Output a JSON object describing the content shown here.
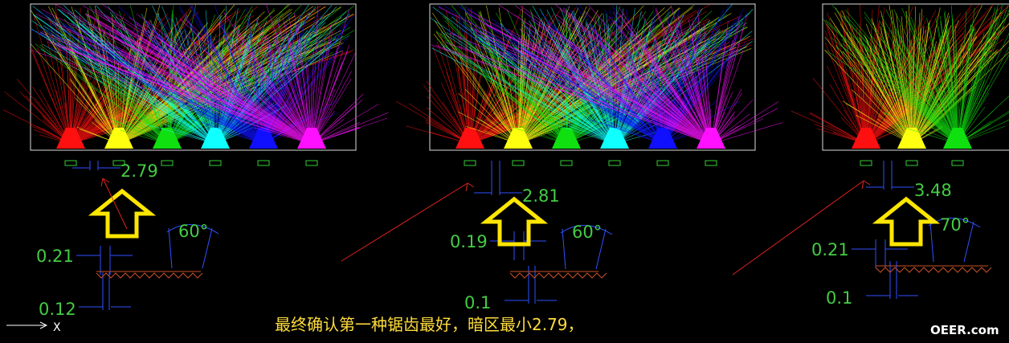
{
  "caption": "最终确认第一种锯齿最好，暗区最小2.79，",
  "watermark": "OEER.com",
  "axis_label": "X",
  "panels": [
    {
      "gap": "2.79",
      "top": "0.21",
      "bottom": "0.12",
      "angle": "60°"
    },
    {
      "gap": "2.81",
      "top": "0.19",
      "bottom": "0.1",
      "angle": "60°"
    },
    {
      "gap": "3.48",
      "top": "0.21",
      "bottom": "0.1",
      "angle": "70°"
    }
  ]
}
